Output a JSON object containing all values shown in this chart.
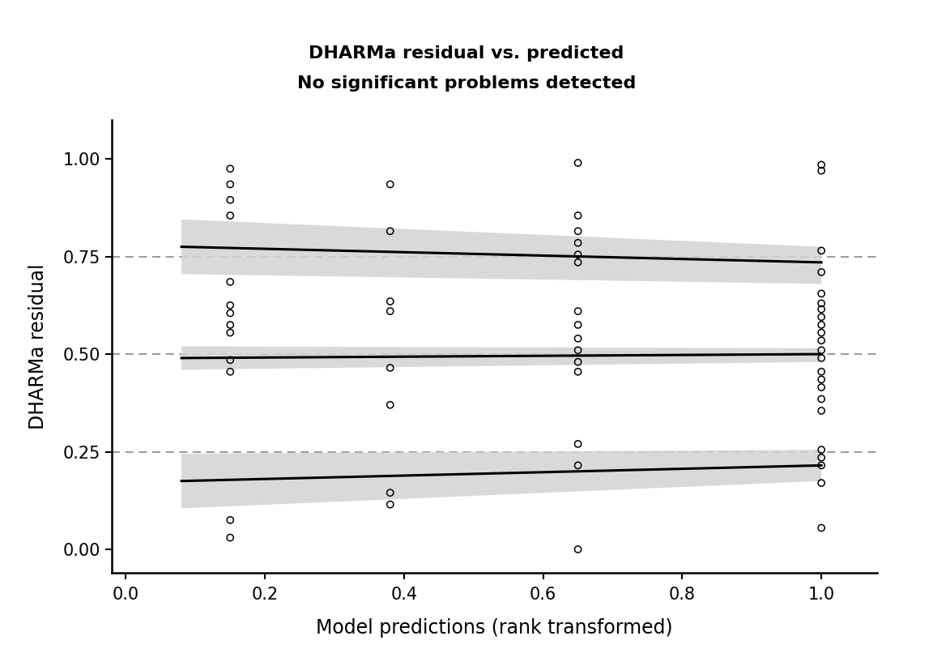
{
  "title_line1": "DHARMa residual vs. predicted",
  "title_line2": "No significant problems detected",
  "xlabel": "Model predictions (rank transformed)",
  "ylabel": "DHARMa residual",
  "xlim": [
    -0.02,
    1.08
  ],
  "ylim": [
    -0.06,
    1.1
  ],
  "xticks": [
    0.0,
    0.2,
    0.4,
    0.6,
    0.8,
    1.0
  ],
  "yticks": [
    0.0,
    0.25,
    0.5,
    0.75,
    1.0
  ],
  "hlines": [
    0.25,
    0.5,
    0.75
  ],
  "background_color": "#ffffff",
  "point_color": "none",
  "point_edgecolor": "#000000",
  "point_size": 35,
  "point_linewidth": 1.1,
  "line_color": "#000000",
  "line_width": 2.2,
  "ci_color": "#d3d3d3",
  "ci_alpha": 0.85,
  "scatter_x": [
    0.15,
    0.15,
    0.15,
    0.15,
    0.15,
    0.15,
    0.15,
    0.15,
    0.15,
    0.15,
    0.15,
    0.15,
    0.15,
    0.38,
    0.38,
    0.38,
    0.38,
    0.38,
    0.38,
    0.38,
    0.38,
    0.65,
    0.65,
    0.65,
    0.65,
    0.65,
    0.65,
    0.65,
    0.65,
    0.65,
    0.65,
    0.65,
    0.65,
    0.65,
    0.65,
    0.65,
    1.0,
    1.0,
    1.0,
    1.0,
    1.0,
    1.0,
    1.0,
    1.0,
    1.0,
    1.0,
    1.0,
    1.0,
    1.0,
    1.0,
    1.0,
    1.0,
    1.0,
    1.0,
    1.0,
    1.0,
    1.0,
    1.0,
    1.0
  ],
  "scatter_y": [
    0.975,
    0.935,
    0.895,
    0.855,
    0.685,
    0.625,
    0.605,
    0.575,
    0.555,
    0.485,
    0.455,
    0.075,
    0.03,
    0.935,
    0.815,
    0.635,
    0.61,
    0.465,
    0.37,
    0.145,
    0.115,
    0.99,
    0.855,
    0.815,
    0.785,
    0.755,
    0.735,
    0.61,
    0.575,
    0.54,
    0.51,
    0.48,
    0.455,
    0.27,
    0.215,
    0.0,
    0.985,
    0.97,
    0.765,
    0.71,
    0.655,
    0.63,
    0.615,
    0.595,
    0.575,
    0.555,
    0.535,
    0.51,
    0.49,
    0.455,
    0.435,
    0.415,
    0.385,
    0.355,
    0.255,
    0.235,
    0.215,
    0.17,
    0.055
  ],
  "trend_lines": [
    {
      "x_start": 0.08,
      "x_end": 1.0,
      "y_start": 0.775,
      "y_end": 0.735,
      "ci_y_start_upper": 0.845,
      "ci_y_end_upper": 0.775,
      "ci_y_start_lower": 0.705,
      "ci_y_end_lower": 0.68
    },
    {
      "x_start": 0.08,
      "x_end": 1.0,
      "y_start": 0.49,
      "y_end": 0.5,
      "ci_y_start_upper": 0.52,
      "ci_y_end_upper": 0.515,
      "ci_y_start_lower": 0.46,
      "ci_y_end_lower": 0.48
    },
    {
      "x_start": 0.08,
      "x_end": 1.0,
      "y_start": 0.175,
      "y_end": 0.215,
      "ci_y_start_upper": 0.245,
      "ci_y_end_upper": 0.255,
      "ci_y_start_lower": 0.105,
      "ci_y_end_lower": 0.175
    }
  ]
}
